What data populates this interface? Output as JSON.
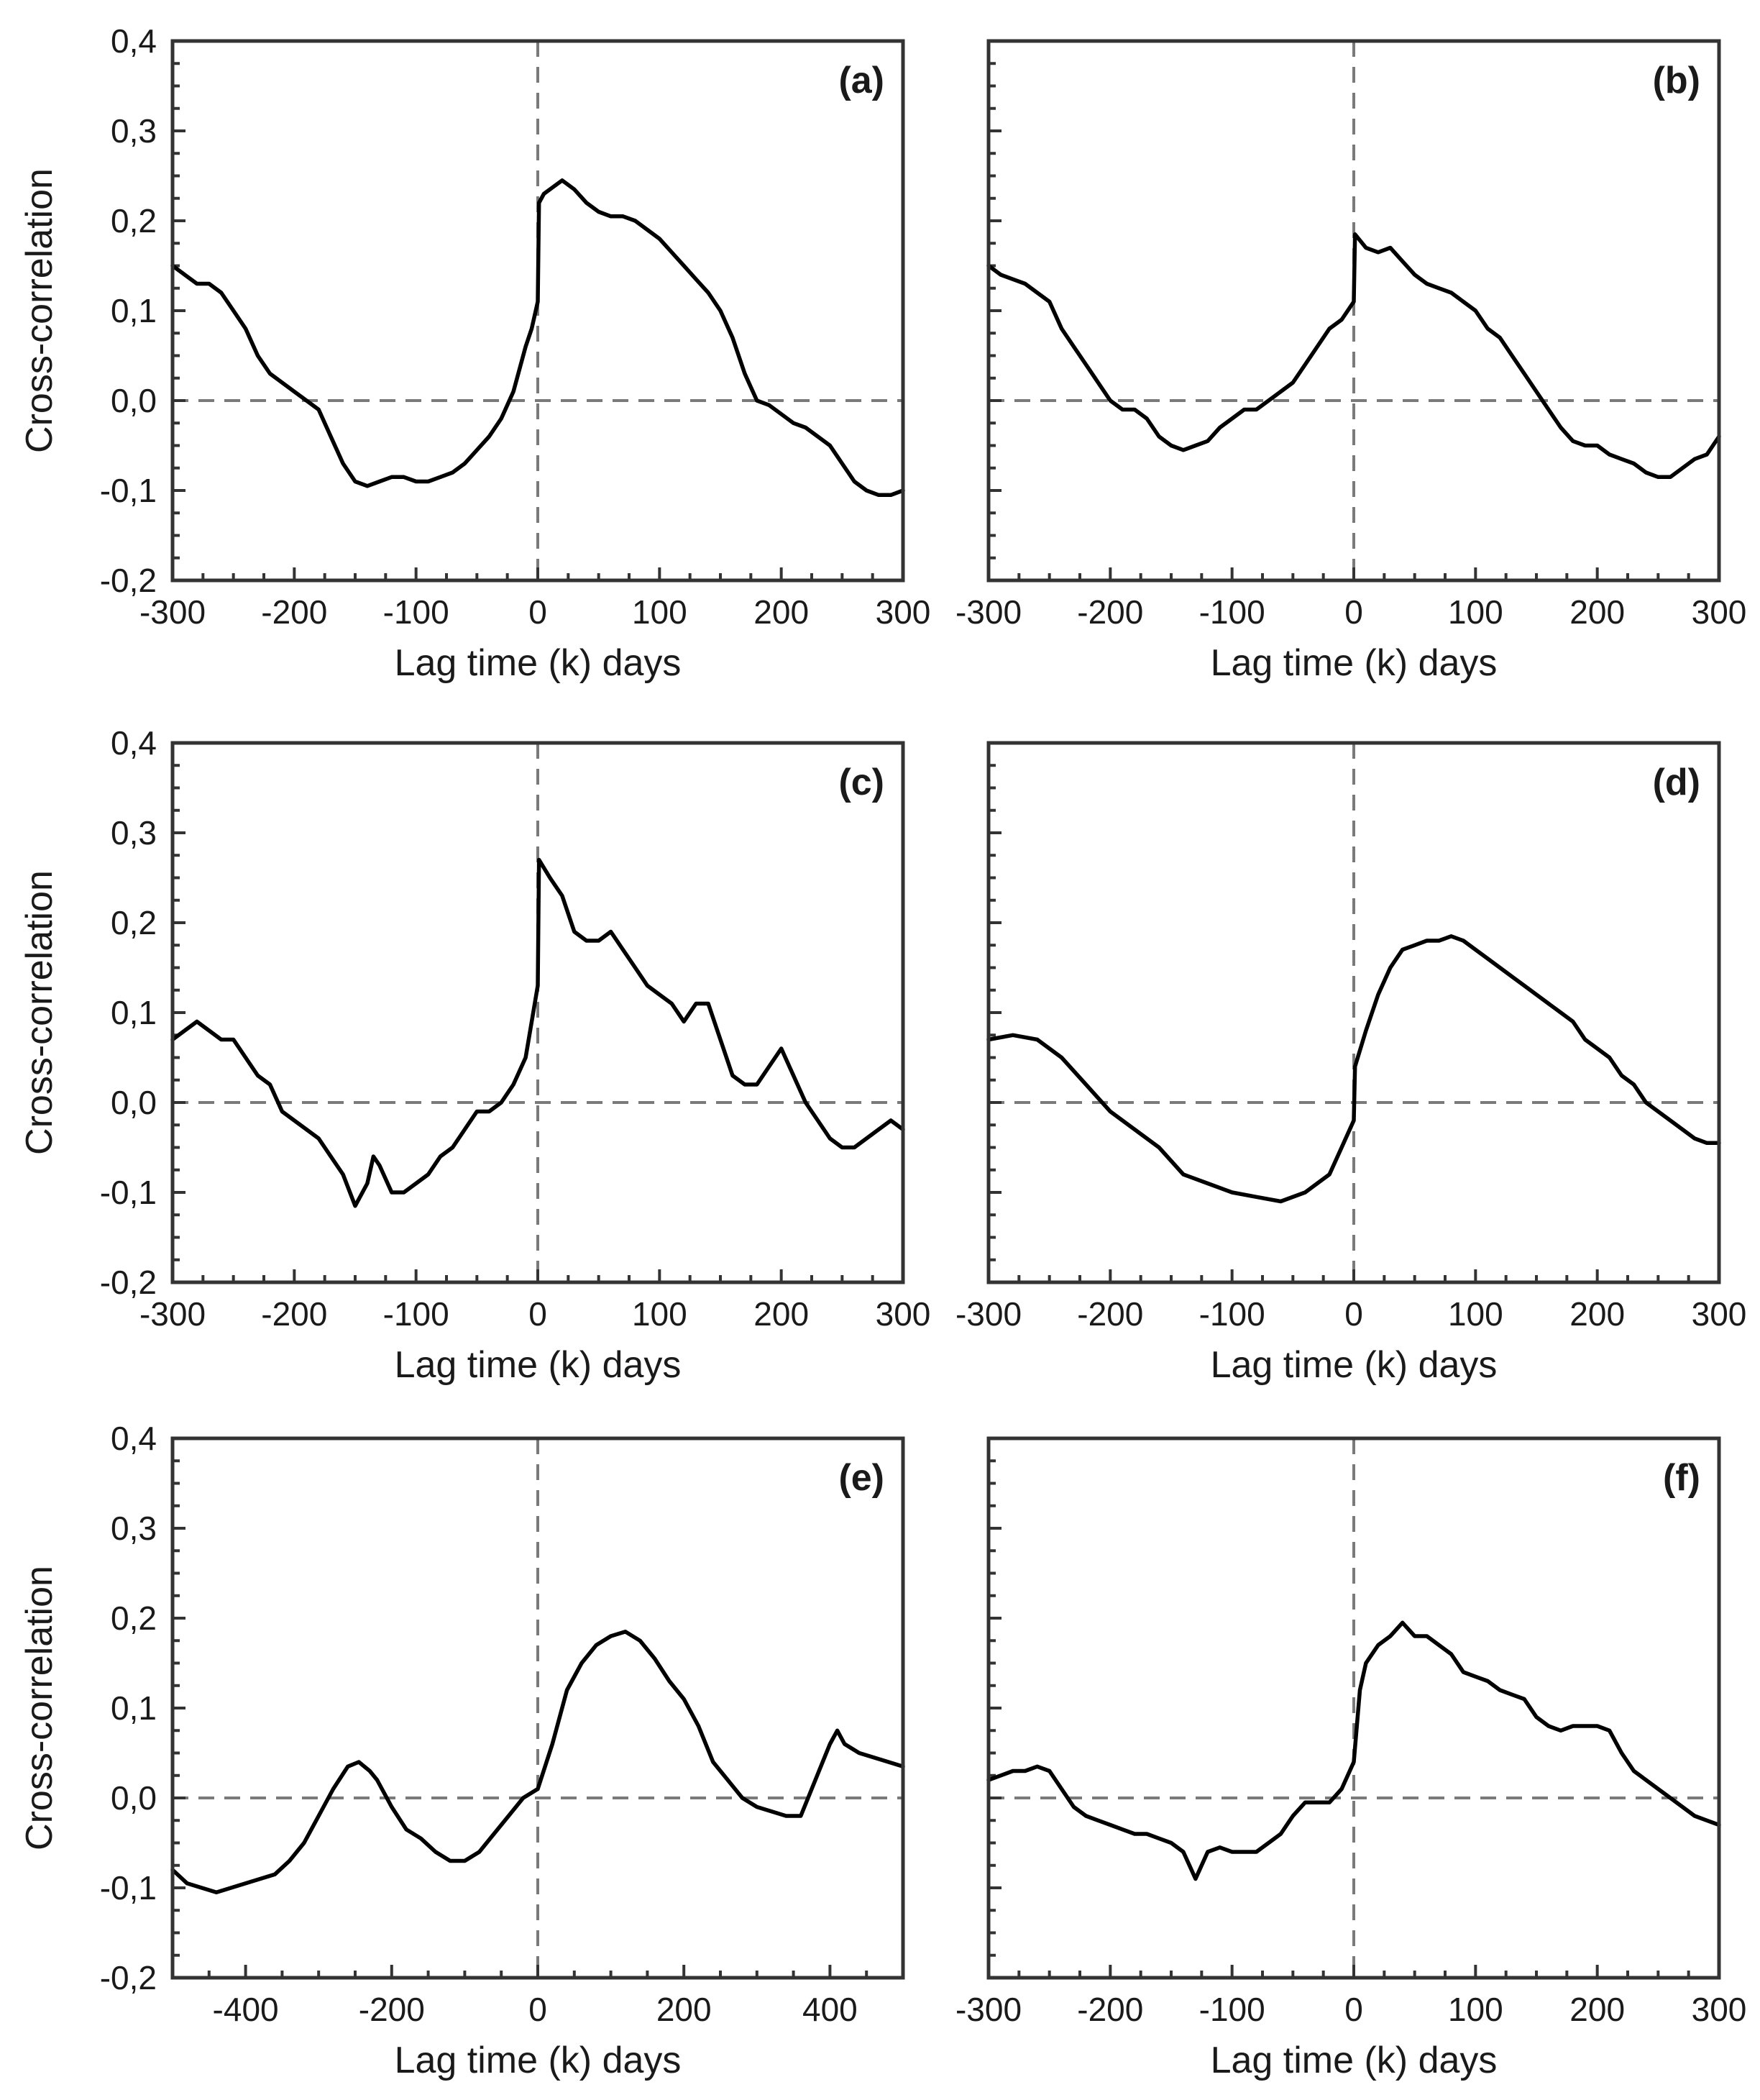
{
  "figure": {
    "ylabel": "Cross-correlation",
    "xlabel": "Lag time (k) days"
  },
  "chart_data": [
    {
      "panel": "(a)",
      "type": "line",
      "xlabel": "Lag time (k) days",
      "ylabel": "Cross-correlation",
      "xlim": [
        -300,
        300
      ],
      "ylim": [
        -0.2,
        0.4
      ],
      "xticks": [
        -300,
        -200,
        -100,
        0,
        100,
        200,
        300
      ],
      "xtick_labels": [
        "-300",
        "-200",
        "-100",
        "0",
        "100",
        "200",
        "300"
      ],
      "yticks": [
        -0.2,
        -0.1,
        0.0,
        0.1,
        0.2,
        0.3,
        0.4
      ],
      "ytick_labels": [
        "-0,2",
        "-0,1",
        "0,0",
        "0,1",
        "0,2",
        "0,3",
        "0,4"
      ],
      "series": [
        {
          "name": "cross-correlation",
          "x": [
            -300,
            -290,
            -280,
            -270,
            -260,
            -250,
            -240,
            -230,
            -220,
            -200,
            -190,
            -180,
            -170,
            -160,
            -150,
            -140,
            -130,
            -120,
            -110,
            -100,
            -90,
            -80,
            -70,
            -60,
            -50,
            -40,
            -30,
            -20,
            -10,
            -5,
            0,
            1,
            5,
            10,
            20,
            30,
            40,
            50,
            60,
            70,
            80,
            90,
            100,
            110,
            120,
            130,
            140,
            150,
            160,
            170,
            180,
            190,
            200,
            210,
            220,
            230,
            240,
            250,
            260,
            270,
            280,
            290,
            300
          ],
          "y": [
            0.15,
            0.14,
            0.13,
            0.13,
            0.12,
            0.1,
            0.08,
            0.05,
            0.03,
            0.01,
            0.0,
            -0.01,
            -0.04,
            -0.07,
            -0.09,
            -0.095,
            -0.09,
            -0.085,
            -0.085,
            -0.09,
            -0.09,
            -0.085,
            -0.08,
            -0.07,
            -0.055,
            -0.04,
            -0.02,
            0.01,
            0.06,
            0.08,
            0.11,
            0.22,
            0.23,
            0.235,
            0.245,
            0.235,
            0.22,
            0.21,
            0.205,
            0.205,
            0.2,
            0.19,
            0.18,
            0.165,
            0.15,
            0.135,
            0.12,
            0.1,
            0.07,
            0.03,
            0.0,
            -0.005,
            -0.015,
            -0.025,
            -0.03,
            -0.04,
            -0.05,
            -0.07,
            -0.09,
            -0.1,
            -0.105,
            -0.105,
            -0.1
          ]
        }
      ]
    },
    {
      "panel": "(b)",
      "type": "line",
      "xlabel": "Lag time (k) days",
      "ylabel": "",
      "xlim": [
        -300,
        300
      ],
      "ylim": [
        -0.2,
        0.4
      ],
      "xticks": [
        -300,
        -200,
        -100,
        0,
        100,
        200,
        300
      ],
      "xtick_labels": [
        "-300",
        "-200",
        "-100",
        "0",
        "100",
        "200",
        "300"
      ],
      "yticks": [
        -0.2,
        -0.1,
        0.0,
        0.1,
        0.2,
        0.3,
        0.4
      ],
      "ytick_labels": [
        "",
        "",
        "",
        "",
        "",
        "",
        ""
      ],
      "series": [
        {
          "name": "cross-correlation",
          "x": [
            -300,
            -290,
            -280,
            -270,
            -260,
            -250,
            -240,
            -230,
            -220,
            -210,
            -200,
            -190,
            -180,
            -170,
            -160,
            -150,
            -140,
            -130,
            -120,
            -110,
            -100,
            -90,
            -80,
            -70,
            -60,
            -50,
            -40,
            -30,
            -20,
            -10,
            0,
            1,
            10,
            20,
            30,
            40,
            50,
            60,
            70,
            80,
            90,
            100,
            110,
            120,
            130,
            140,
            150,
            160,
            170,
            180,
            190,
            200,
            210,
            220,
            230,
            240,
            250,
            260,
            270,
            280,
            290,
            300
          ],
          "y": [
            0.15,
            0.14,
            0.135,
            0.13,
            0.12,
            0.11,
            0.08,
            0.06,
            0.04,
            0.02,
            0.0,
            -0.01,
            -0.01,
            -0.02,
            -0.04,
            -0.05,
            -0.055,
            -0.05,
            -0.045,
            -0.03,
            -0.02,
            -0.01,
            -0.01,
            0.0,
            0.01,
            0.02,
            0.04,
            0.06,
            0.08,
            0.09,
            0.11,
            0.185,
            0.17,
            0.165,
            0.17,
            0.155,
            0.14,
            0.13,
            0.125,
            0.12,
            0.11,
            0.1,
            0.08,
            0.07,
            0.05,
            0.03,
            0.01,
            -0.01,
            -0.03,
            -0.045,
            -0.05,
            -0.05,
            -0.06,
            -0.065,
            -0.07,
            -0.08,
            -0.085,
            -0.085,
            -0.075,
            -0.065,
            -0.06,
            -0.04
          ]
        }
      ]
    },
    {
      "panel": "(c)",
      "type": "line",
      "xlabel": "Lag time (k) days",
      "ylabel": "Cross-correlation",
      "xlim": [
        -300,
        300
      ],
      "ylim": [
        -0.2,
        0.4
      ],
      "xticks": [
        -300,
        -200,
        -100,
        0,
        100,
        200,
        300
      ],
      "xtick_labels": [
        "-300",
        "-200",
        "-100",
        "0",
        "100",
        "200",
        "300"
      ],
      "yticks": [
        -0.2,
        -0.1,
        0.0,
        0.1,
        0.2,
        0.3,
        0.4
      ],
      "ytick_labels": [
        "-0,2",
        "-0,1",
        "0,0",
        "0,1",
        "0,2",
        "0,3",
        "0,4"
      ],
      "series": [
        {
          "name": "cross-correlation",
          "x": [
            -300,
            -290,
            -280,
            -270,
            -260,
            -250,
            -240,
            -230,
            -220,
            -210,
            -200,
            -190,
            -180,
            -170,
            -160,
            -150,
            -140,
            -135,
            -130,
            -120,
            -110,
            -100,
            -90,
            -80,
            -70,
            -60,
            -50,
            -40,
            -30,
            -20,
            -10,
            0,
            1,
            10,
            20,
            30,
            40,
            50,
            60,
            70,
            80,
            90,
            100,
            110,
            120,
            130,
            140,
            150,
            160,
            170,
            180,
            190,
            200,
            210,
            220,
            230,
            240,
            250,
            260,
            270,
            280,
            290,
            300
          ],
          "y": [
            0.07,
            0.08,
            0.09,
            0.08,
            0.07,
            0.07,
            0.05,
            0.03,
            0.02,
            -0.01,
            -0.02,
            -0.03,
            -0.04,
            -0.06,
            -0.08,
            -0.115,
            -0.09,
            -0.06,
            -0.07,
            -0.1,
            -0.1,
            -0.09,
            -0.08,
            -0.06,
            -0.05,
            -0.03,
            -0.01,
            -0.01,
            0.0,
            0.02,
            0.05,
            0.13,
            0.27,
            0.25,
            0.23,
            0.19,
            0.18,
            0.18,
            0.19,
            0.17,
            0.15,
            0.13,
            0.12,
            0.11,
            0.09,
            0.11,
            0.11,
            0.07,
            0.03,
            0.02,
            0.02,
            0.04,
            0.06,
            0.03,
            0.0,
            -0.02,
            -0.04,
            -0.05,
            -0.05,
            -0.04,
            -0.03,
            -0.02,
            -0.03
          ]
        }
      ]
    },
    {
      "panel": "(d)",
      "type": "line",
      "xlabel": "Lag time (k) days",
      "ylabel": "",
      "xlim": [
        -300,
        300
      ],
      "ylim": [
        -0.2,
        0.4
      ],
      "xticks": [
        -300,
        -200,
        -100,
        0,
        100,
        200,
        300
      ],
      "xtick_labels": [
        "-300",
        "-200",
        "-100",
        "0",
        "100",
        "200",
        "300"
      ],
      "yticks": [
        -0.2,
        -0.1,
        0.0,
        0.1,
        0.2,
        0.3,
        0.4
      ],
      "ytick_labels": [
        "",
        "",
        "",
        "",
        "",
        "",
        ""
      ],
      "series": [
        {
          "name": "cross-correlation",
          "x": [
            -300,
            -280,
            -260,
            -240,
            -220,
            -200,
            -180,
            -160,
            -140,
            -120,
            -100,
            -80,
            -60,
            -40,
            -20,
            -10,
            0,
            1,
            10,
            20,
            30,
            40,
            50,
            60,
            70,
            80,
            90,
            100,
            110,
            120,
            130,
            140,
            150,
            160,
            170,
            180,
            190,
            200,
            210,
            220,
            230,
            240,
            250,
            260,
            270,
            280,
            290,
            300
          ],
          "y": [
            0.07,
            0.075,
            0.07,
            0.05,
            0.02,
            -0.01,
            -0.03,
            -0.05,
            -0.08,
            -0.09,
            -0.1,
            -0.105,
            -0.11,
            -0.1,
            -0.08,
            -0.05,
            -0.02,
            0.04,
            0.08,
            0.12,
            0.15,
            0.17,
            0.175,
            0.18,
            0.18,
            0.185,
            0.18,
            0.17,
            0.16,
            0.15,
            0.14,
            0.13,
            0.12,
            0.11,
            0.1,
            0.09,
            0.07,
            0.06,
            0.05,
            0.03,
            0.02,
            0.0,
            -0.01,
            -0.02,
            -0.03,
            -0.04,
            -0.045,
            -0.045
          ]
        }
      ]
    },
    {
      "panel": "(e)",
      "type": "line",
      "xlabel": "Lag time (k) days",
      "ylabel": "Cross-correlation",
      "xlim": [
        -500,
        500
      ],
      "ylim": [
        -0.2,
        0.4
      ],
      "xticks": [
        -400,
        -200,
        0,
        200,
        400
      ],
      "xtick_labels": [
        "-400",
        "-200",
        "0",
        "200",
        "400"
      ],
      "yticks": [
        -0.2,
        -0.1,
        0.0,
        0.1,
        0.2,
        0.3,
        0.4
      ],
      "ytick_labels": [
        "-0,2",
        "-0,1",
        "0,0",
        "0,1",
        "0,2",
        "0,3",
        "0,4"
      ],
      "series": [
        {
          "name": "cross-correlation",
          "x": [
            -500,
            -480,
            -460,
            -440,
            -420,
            -400,
            -380,
            -360,
            -340,
            -320,
            -300,
            -280,
            -260,
            -245,
            -230,
            -220,
            -200,
            -180,
            -160,
            -140,
            -120,
            -100,
            -80,
            -60,
            -40,
            -20,
            0,
            20,
            40,
            60,
            80,
            100,
            120,
            140,
            160,
            180,
            200,
            220,
            240,
            260,
            280,
            300,
            320,
            340,
            360,
            380,
            400,
            410,
            420,
            440,
            460,
            480,
            500
          ],
          "y": [
            -0.08,
            -0.095,
            -0.1,
            -0.105,
            -0.1,
            -0.095,
            -0.09,
            -0.085,
            -0.07,
            -0.05,
            -0.02,
            0.01,
            0.035,
            0.04,
            0.03,
            0.02,
            -0.01,
            -0.035,
            -0.045,
            -0.06,
            -0.07,
            -0.07,
            -0.06,
            -0.04,
            -0.02,
            0.0,
            0.01,
            0.06,
            0.12,
            0.15,
            0.17,
            0.18,
            0.185,
            0.175,
            0.155,
            0.13,
            0.11,
            0.08,
            0.04,
            0.02,
            0.0,
            -0.01,
            -0.015,
            -0.02,
            -0.02,
            0.02,
            0.06,
            0.075,
            0.06,
            0.05,
            0.045,
            0.04,
            0.035
          ]
        }
      ]
    },
    {
      "panel": "(f)",
      "type": "line",
      "xlabel": "Lag time (k) days",
      "ylabel": "",
      "xlim": [
        -300,
        300
      ],
      "ylim": [
        -0.2,
        0.4
      ],
      "xticks": [
        -300,
        -200,
        -100,
        0,
        100,
        200,
        300
      ],
      "xtick_labels": [
        "-300",
        "-200",
        "-100",
        "0",
        "100",
        "200",
        "300"
      ],
      "yticks": [
        -0.2,
        -0.1,
        0.0,
        0.1,
        0.2,
        0.3,
        0.4
      ],
      "ytick_labels": [
        "",
        "",
        "",
        "",
        "",
        "",
        ""
      ],
      "series": [
        {
          "name": "cross-correlation",
          "x": [
            -300,
            -290,
            -280,
            -270,
            -260,
            -250,
            -240,
            -230,
            -220,
            -210,
            -200,
            -190,
            -180,
            -170,
            -160,
            -150,
            -140,
            -135,
            -130,
            -120,
            -110,
            -100,
            -90,
            -80,
            -70,
            -60,
            -50,
            -40,
            -30,
            -20,
            -10,
            0,
            5,
            10,
            20,
            30,
            40,
            50,
            60,
            70,
            80,
            90,
            100,
            110,
            120,
            130,
            140,
            150,
            160,
            170,
            180,
            190,
            200,
            210,
            220,
            230,
            240,
            250,
            260,
            270,
            280,
            290,
            300
          ],
          "y": [
            0.02,
            0.025,
            0.03,
            0.03,
            0.035,
            0.03,
            0.01,
            -0.01,
            -0.02,
            -0.025,
            -0.03,
            -0.035,
            -0.04,
            -0.04,
            -0.045,
            -0.05,
            -0.06,
            -0.075,
            -0.09,
            -0.06,
            -0.055,
            -0.06,
            -0.06,
            -0.06,
            -0.05,
            -0.04,
            -0.02,
            -0.005,
            -0.005,
            -0.005,
            0.01,
            0.04,
            0.12,
            0.15,
            0.17,
            0.18,
            0.195,
            0.18,
            0.18,
            0.17,
            0.16,
            0.14,
            0.135,
            0.13,
            0.12,
            0.115,
            0.11,
            0.09,
            0.08,
            0.075,
            0.08,
            0.08,
            0.08,
            0.075,
            0.05,
            0.03,
            0.02,
            0.01,
            0.0,
            -0.01,
            -0.02,
            -0.025,
            -0.03
          ]
        }
      ]
    }
  ]
}
